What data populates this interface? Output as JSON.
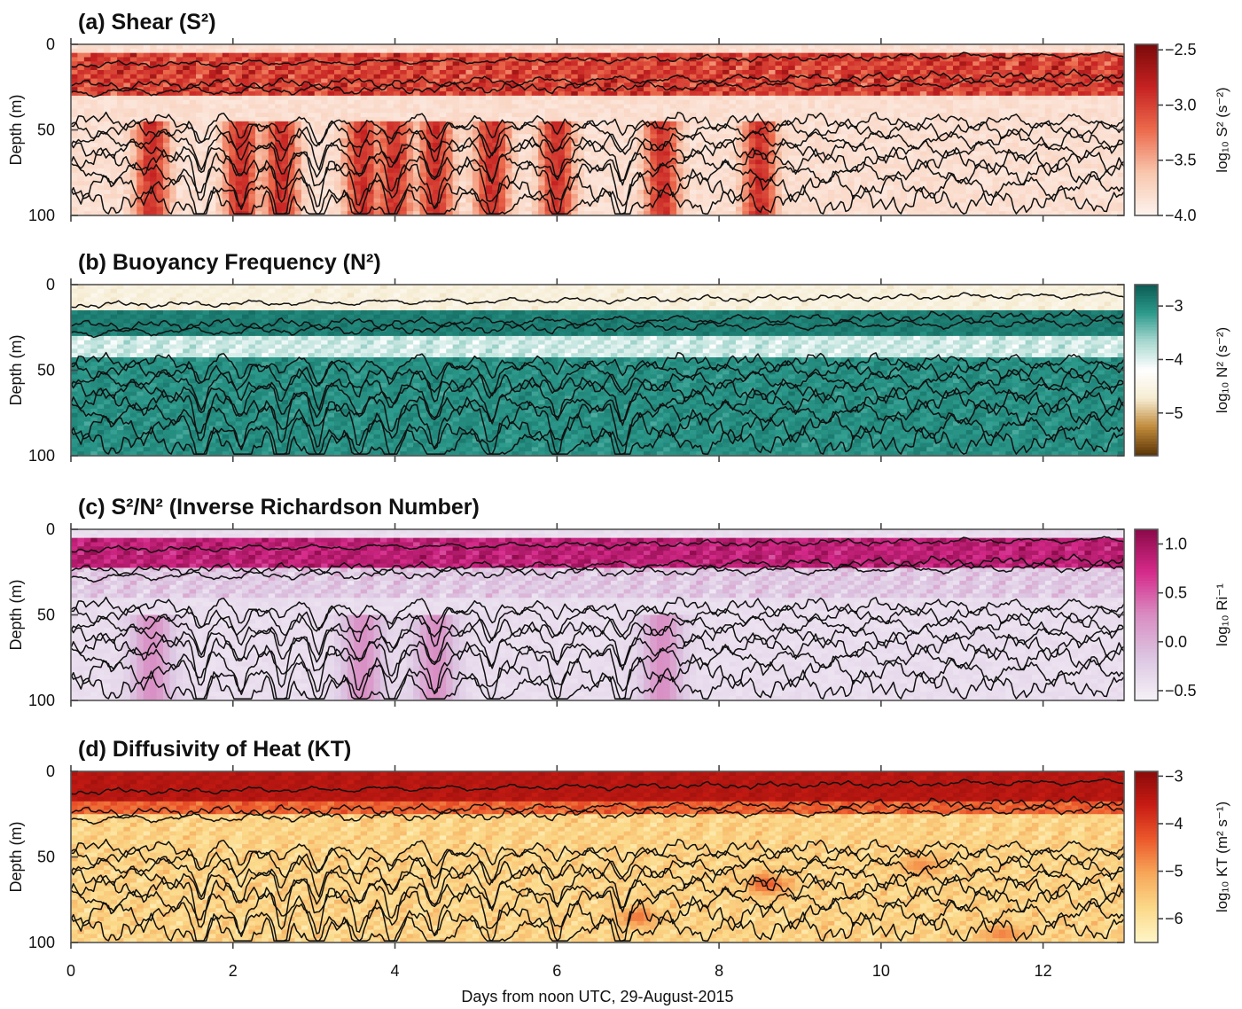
{
  "figure": {
    "xlabel": "Days from noon UTC, 29-August-2015",
    "xticks": [
      0,
      2,
      4,
      6,
      8,
      10,
      12
    ],
    "xlim": [
      0,
      13
    ]
  },
  "chart_data": [
    {
      "type": "heatmap",
      "panel": "a",
      "title": "(a) Shear (S²)",
      "ylabel": "Depth (m)",
      "yticks": [
        0,
        50,
        100
      ],
      "ylim": [
        0,
        100
      ],
      "colorbar": {
        "label": "log₁₀ S² (s⁻²)",
        "ticks": [
          "−2.5",
          "−3.0",
          "−3.5",
          "−4.0"
        ],
        "tick_values": [
          -2.5,
          -3.0,
          -3.5,
          -4.0
        ],
        "range": [
          -4.0,
          -2.45
        ],
        "colors": [
          "#fdf3ee",
          "#f8c6ad",
          "#ec6a4c",
          "#c62222",
          "#7a0a0a"
        ]
      },
      "features": {
        "surface_band_depth_m": [
          5,
          30
        ],
        "surface_band_log_value": -3.0,
        "background_log_value": -3.9,
        "deep_events_days": [
          1.0,
          2.1,
          2.6,
          3.6,
          4.0,
          4.5,
          5.2,
          6.0,
          7.3,
          8.5
        ],
        "deep_events_log_value": -2.9
      }
    },
    {
      "type": "heatmap",
      "panel": "b",
      "title": "(b) Buoyancy Frequency (N²)",
      "ylabel": "Depth (m)",
      "yticks": [
        0,
        50,
        100
      ],
      "ylim": [
        0,
        100
      ],
      "colorbar": {
        "label": "log₁₀ N² (s⁻²)",
        "ticks": [
          "−3",
          "−4",
          "−5"
        ],
        "tick_values": [
          -3,
          -4,
          -5
        ],
        "range": [
          -5.8,
          -2.6
        ],
        "colors": [
          "#5a3406",
          "#c08a3a",
          "#f6ecd2",
          "#ffffff",
          "#a8d8d0",
          "#2c9a8c",
          "#0b5a52"
        ]
      },
      "features": {
        "mixed_layer_depth_m": 18,
        "mixed_layer_log_value": -4.6,
        "pycnocline_log_value": -2.9,
        "mid_band_depth_m": [
          30,
          42
        ],
        "mid_band_log_value": -3.9,
        "deep_log_value": -3.05
      }
    },
    {
      "type": "heatmap",
      "panel": "c",
      "title": "(c) S²/N² (Inverse Richardson Number)",
      "ylabel": "Depth (m)",
      "yticks": [
        0,
        50,
        100
      ],
      "ylim": [
        0,
        100
      ],
      "colorbar": {
        "label": "log₁₀ Ri⁻¹",
        "ticks": [
          "1.0",
          "0.5",
          "0.0",
          "−0.5"
        ],
        "tick_values": [
          1.0,
          0.5,
          0.0,
          -0.5
        ],
        "range": [
          -0.6,
          1.15
        ],
        "colors": [
          "#f5f2f8",
          "#dcc6e2",
          "#d98cc2",
          "#d52a8a",
          "#8a0a48"
        ]
      },
      "features": {
        "surface_band_depth_m": [
          5,
          22
        ],
        "surface_band_log_value": 0.85,
        "background_log_value": -0.45,
        "deep_events_days": [
          1.0,
          3.6,
          4.5,
          7.3
        ],
        "deep_events_log_value": 0.25
      }
    },
    {
      "type": "heatmap",
      "panel": "d",
      "title": "(d) Diffusivity of Heat (KT)",
      "ylabel": "Depth (m)",
      "yticks": [
        0,
        50,
        100
      ],
      "ylim": [
        0,
        100
      ],
      "colorbar": {
        "label": "log₁₀ KT (m² s⁻¹)",
        "ticks": [
          "−3",
          "−4",
          "−5",
          "−6"
        ],
        "tick_values": [
          -3,
          -4,
          -5,
          -6
        ],
        "range": [
          -6.5,
          -2.9
        ],
        "colors": [
          "#fff6c8",
          "#fbd98a",
          "#f7a85a",
          "#ec5a2c",
          "#c81c14",
          "#8a0a0a"
        ]
      },
      "features": {
        "surface_mixed_depth_m": 18,
        "surface_log_value": -3.4,
        "interior_log_value": -5.7,
        "patches": [
          {
            "day": 8.6,
            "depth_m": 66,
            "log_value": -4.3
          },
          {
            "day": 7.0,
            "depth_m": 85,
            "log_value": -4.6
          },
          {
            "day": 10.5,
            "depth_m": 55,
            "log_value": -4.8
          },
          {
            "day": 11.5,
            "depth_m": 95,
            "log_value": -4.7
          }
        ]
      }
    }
  ],
  "isotherms": {
    "mean_depths_m": [
      12,
      24,
      28,
      45,
      50,
      56,
      62,
      68,
      75,
      83,
      92
    ],
    "wave_amplitude_m": [
      2,
      3,
      3,
      5,
      5,
      6,
      6,
      7,
      7,
      8,
      8
    ],
    "deep_dip_days": [
      1.6,
      2.1,
      2.6,
      3.05,
      3.55,
      3.95,
      4.5,
      5.2,
      6.0,
      6.8
    ]
  }
}
